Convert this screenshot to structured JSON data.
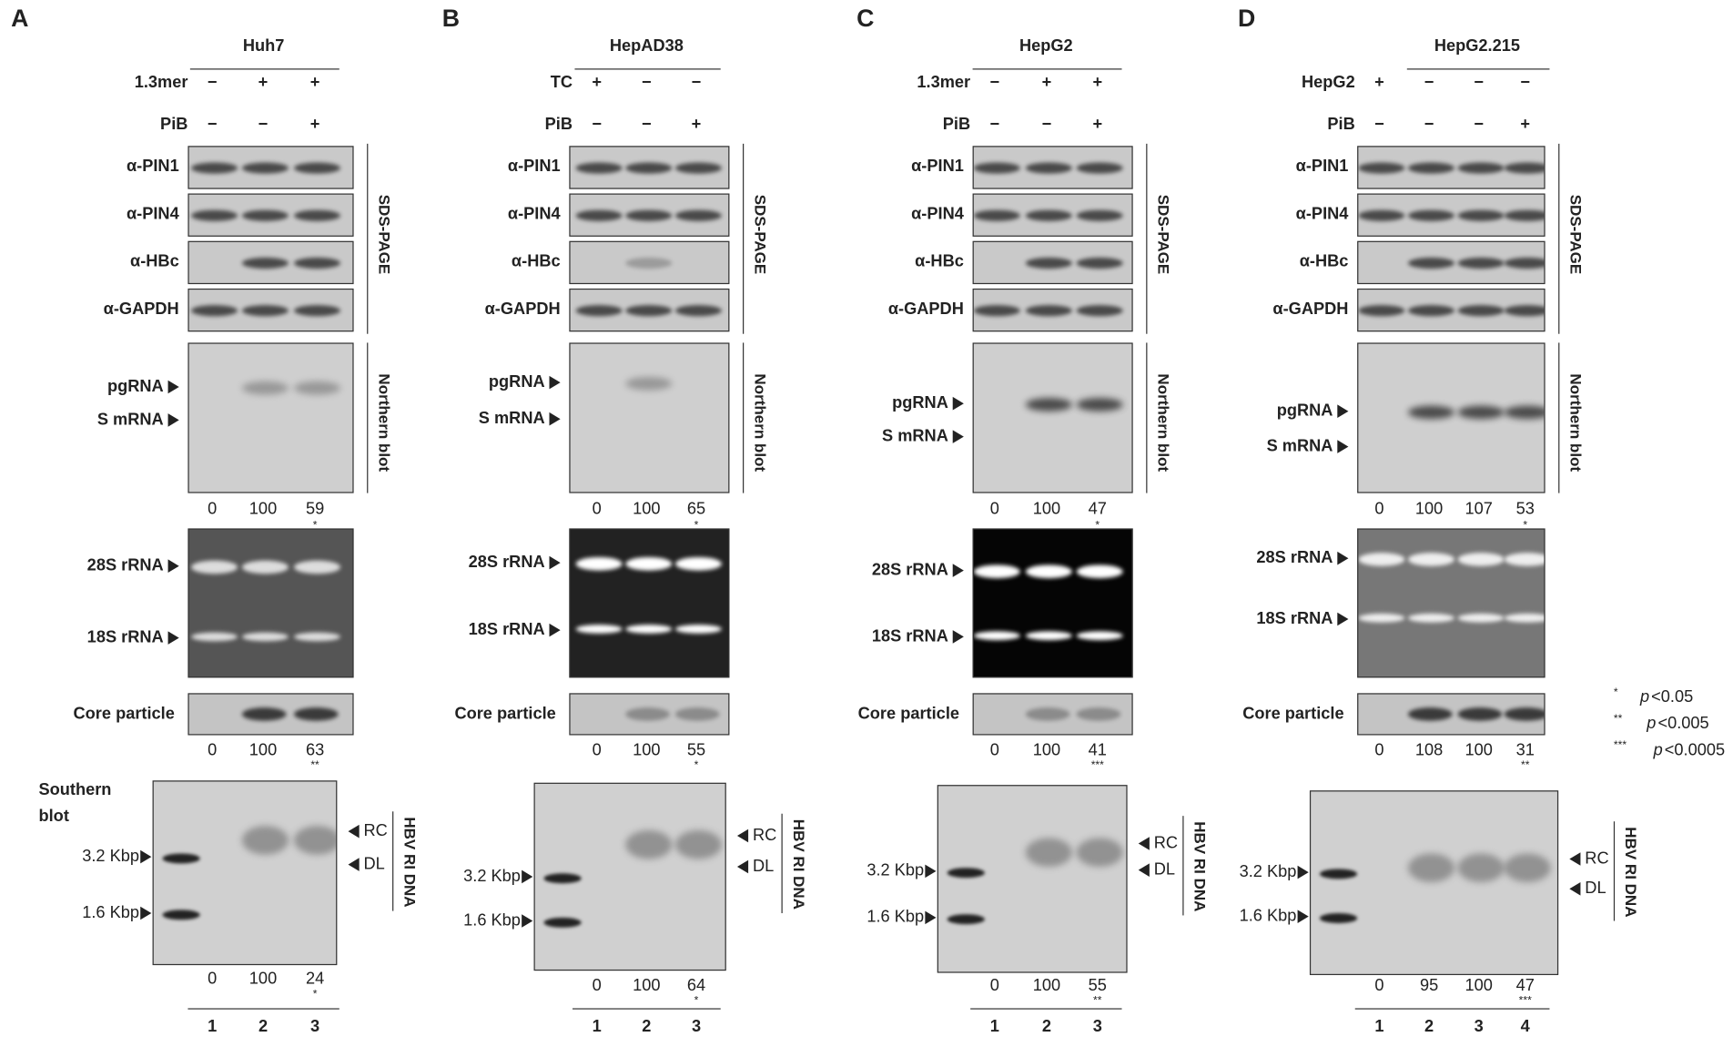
{
  "panels": [
    {
      "letter": "A",
      "cell_line": "Huh7",
      "conditions": [
        {
          "label": "1.3mer",
          "signs": [
            "−",
            "+",
            "+"
          ]
        },
        {
          "label": "PiB",
          "signs": [
            "−",
            "−",
            "+"
          ]
        }
      ],
      "western": {
        "rows": [
          "α-PIN1",
          "α-PIN4",
          "α-HBc",
          "α-GAPDH"
        ],
        "side": "SDS-PAGE"
      },
      "northern": {
        "markers": [
          "pgRNA",
          "S mRNA"
        ],
        "side": "Northern blot",
        "quant": [
          0,
          100,
          59
        ],
        "stars": "*"
      },
      "rrna": [
        "28S rRNA",
        "18S rRNA"
      ],
      "core": {
        "label": "Core particle",
        "quant": [
          0,
          100,
          63
        ],
        "stars": "**"
      },
      "southern": {
        "label": "Southern blot",
        "markers": [
          "3.2 Kbp",
          "1.6 Kbp"
        ],
        "bands": [
          "RC",
          "DL"
        ],
        "side": "HBV RI DNA",
        "quant": [
          0,
          100,
          24
        ],
        "stars": "*"
      },
      "lanes": [
        1,
        2,
        3
      ]
    },
    {
      "letter": "B",
      "cell_line": "HepAD38",
      "conditions": [
        {
          "label": "TC",
          "signs": [
            "+",
            "−",
            "−"
          ]
        },
        {
          "label": "PiB",
          "signs": [
            "−",
            "−",
            "+"
          ]
        }
      ],
      "western": {
        "rows": [
          "α-PIN1",
          "α-PIN4",
          "α-HBc",
          "α-GAPDH"
        ],
        "side": "SDS-PAGE"
      },
      "northern": {
        "markers": [
          "pgRNA",
          "S mRNA"
        ],
        "side": "Northern blot",
        "quant": [
          0,
          100,
          65
        ],
        "stars": "*"
      },
      "rrna": [
        "28S rRNA",
        "18S rRNA"
      ],
      "core": {
        "label": "Core particle",
        "quant": [
          0,
          100,
          55
        ],
        "stars": "*"
      },
      "southern": {
        "markers": [
          "3.2 Kbp",
          "1.6 Kbp"
        ],
        "bands": [
          "RC",
          "DL"
        ],
        "side": "HBV RI DNA",
        "quant": [
          0,
          100,
          64
        ],
        "stars": "*"
      },
      "lanes": [
        1,
        2,
        3
      ]
    },
    {
      "letter": "C",
      "cell_line": "HepG2",
      "conditions": [
        {
          "label": "1.3mer",
          "signs": [
            "−",
            "+",
            "+"
          ]
        },
        {
          "label": "PiB",
          "signs": [
            "−",
            "−",
            "+"
          ]
        }
      ],
      "western": {
        "rows": [
          "α-PIN1",
          "α-PIN4",
          "α-HBc",
          "α-GAPDH"
        ],
        "side": "SDS-PAGE"
      },
      "northern": {
        "markers": [
          "pgRNA",
          "S mRNA"
        ],
        "side": "Northern blot",
        "quant": [
          0,
          100,
          47
        ],
        "stars": "*"
      },
      "rrna": [
        "28S rRNA",
        "18S rRNA"
      ],
      "core": {
        "label": "Core particle",
        "quant": [
          0,
          100,
          41
        ],
        "stars": "***"
      },
      "southern": {
        "markers": [
          "3.2 Kbp",
          "1.6 Kbp"
        ],
        "bands": [
          "RC",
          "DL"
        ],
        "side": "HBV RI DNA",
        "quant": [
          0,
          100,
          55
        ],
        "stars": "**"
      },
      "lanes": [
        1,
        2,
        3
      ]
    },
    {
      "letter": "D",
      "cell_line": "HepG2.215",
      "conditions": [
        {
          "label": "HepG2",
          "signs": [
            "+",
            "−",
            "−",
            "−"
          ]
        },
        {
          "label": "PiB",
          "signs": [
            "−",
            "−",
            "−",
            "+"
          ]
        }
      ],
      "western": {
        "rows": [
          "α-PIN1",
          "α-PIN4",
          "α-HBc",
          "α-GAPDH"
        ],
        "side": "SDS-PAGE"
      },
      "northern": {
        "markers": [
          "pgRNA",
          "S mRNA"
        ],
        "side": "Northern blot",
        "quant": [
          0,
          100,
          107,
          53
        ],
        "stars": "*"
      },
      "rrna": [
        "28S rRNA",
        "18S rRNA"
      ],
      "core": {
        "label": "Core particle",
        "quant": [
          0,
          108,
          100,
          31
        ],
        "stars": "**"
      },
      "southern": {
        "markers": [
          "3.2 Kbp",
          "1.6 Kbp"
        ],
        "bands": [
          "RC",
          "DL"
        ],
        "side": "HBV RI DNA",
        "quant": [
          0,
          95,
          100,
          47
        ],
        "stars": "***"
      },
      "lanes": [
        1,
        2,
        3,
        4
      ]
    }
  ],
  "legend": [
    {
      "stars": "*",
      "p": "p",
      "threshold": "<0.05"
    },
    {
      "stars": "**",
      "p": "p",
      "threshold": "<0.005"
    },
    {
      "stars": "***",
      "p": "p",
      "threshold": "<0.0005"
    }
  ]
}
